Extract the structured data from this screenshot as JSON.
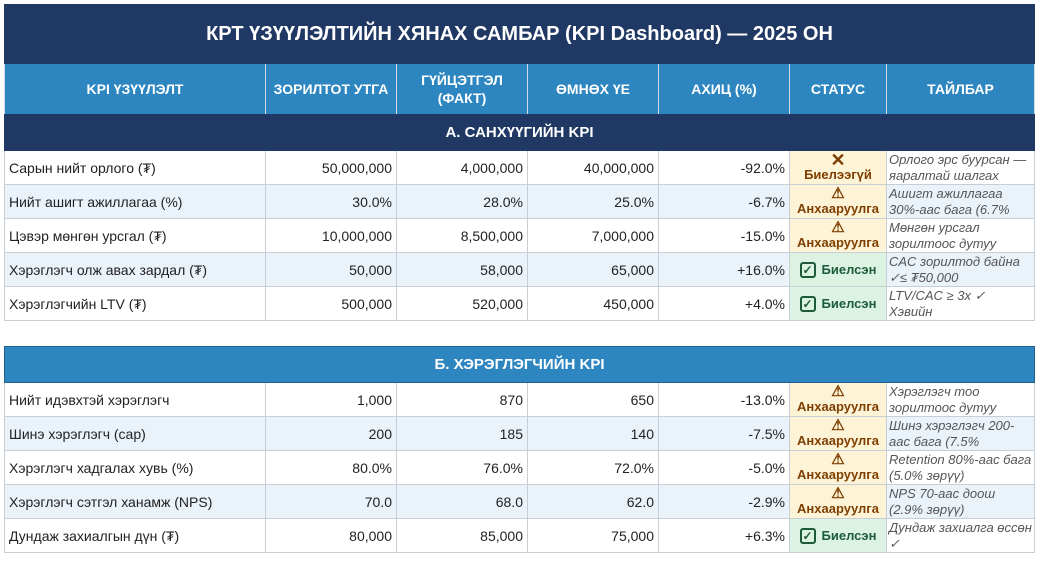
{
  "title": "КРТ ҮЗҮҮЛЭЛТИЙН ХЯНАХ САМБАР (KPI Dashboard) — 2025 ОН",
  "headers": {
    "kpi": "KPI ҮЗҮҮЛЭЛТ",
    "target": "ЗОРИЛТОТ УТГА",
    "fact_line1": "ГҮЙЦЭТГЭЛ",
    "fact_line2": "(ФАКТ)",
    "prev": "ӨМНӨХ ҮЕ",
    "change": "АХИЦ (%)",
    "status": "СТАТУС",
    "note": "ТАЙЛБАР"
  },
  "section_a": {
    "title": "А. САНХҮҮГИЙН KPI",
    "rows": [
      {
        "name": "Сарын нийт орлого (₮)",
        "target": "50,000,000",
        "fact": "4,000,000",
        "prev": "40,000,000",
        "change": "-92.0%",
        "status": "Биелээгүй",
        "status_type": "fail",
        "note": "Орлого эрс буурсан — яаралтай шалгах"
      },
      {
        "name": "Нийт ашигт ажиллагаа (%)",
        "target": "30.0%",
        "fact": "28.0%",
        "prev": "25.0%",
        "change": "-6.7%",
        "status": "Анхааруулга",
        "status_type": "warn",
        "note": "Ашигт ажиллагаа 30%-аас бага (6.7%"
      },
      {
        "name": "Цэвэр мөнгөн урсгал (₮)",
        "target": "10,000,000",
        "fact": "8,500,000",
        "prev": "7,000,000",
        "change": "-15.0%",
        "status": "Анхааруулга",
        "status_type": "warn",
        "note": "Мөнгөн урсгал зорилтоос дутуу"
      },
      {
        "name": "Хэрэглэгч олж авах зардал (₮)",
        "target": "50,000",
        "fact": "58,000",
        "prev": "65,000",
        "change": "+16.0%",
        "status": "Биелсэн",
        "status_type": "ok",
        "note": "CAC зорилтод байна ✓≤ ₮50,000"
      },
      {
        "name": "Хэрэглэгчийн LTV (₮)",
        "target": "500,000",
        "fact": "520,000",
        "prev": "450,000",
        "change": "+4.0%",
        "status": "Биелсэн",
        "status_type": "ok",
        "note": "LTV/CAC ≥ 3x ✓ Хэвийн"
      }
    ]
  },
  "section_b": {
    "title": "Б. ХЭРЭГЛЭГЧИЙН KPI",
    "rows": [
      {
        "name": "Нийт идэвхтэй хэрэглэгч",
        "target": "1,000",
        "fact": "870",
        "prev": "650",
        "change": "-13.0%",
        "status": "Анхааруулга",
        "status_type": "warn",
        "note": "Хэрэглэгч тоо зорилтоос дутуу"
      },
      {
        "name": "Шинэ хэрэглэгч (сар)",
        "target": "200",
        "fact": "185",
        "prev": "140",
        "change": "-7.5%",
        "status": "Анхааруулга",
        "status_type": "warn",
        "note": "Шинэ хэрэглэгч 200-аас бага (7.5%"
      },
      {
        "name": "Хэрэглэгч хадгалах хувь (%)",
        "target": "80.0%",
        "fact": "76.0%",
        "prev": "72.0%",
        "change": "-5.0%",
        "status": "Анхааруулга",
        "status_type": "warn",
        "note": "Retention 80%-аас бага (5.0% зөрүү)"
      },
      {
        "name": "Хэрэглэгч сэтгэл ханамж (NPS)",
        "target": "70.0",
        "fact": "68.0",
        "prev": "62.0",
        "change": "-2.9%",
        "status": "Анхааруулга",
        "status_type": "warn",
        "note": "NPS 70-аас доош (2.9% зөрүү)"
      },
      {
        "name": "Дундаж захиалгын дүн (₮)",
        "target": "80,000",
        "fact": "85,000",
        "prev": "75,000",
        "change": "+6.3%",
        "status": "Биелсэн",
        "status_type": "ok",
        "note": "Дундаж захиалга өссөн ✓"
      }
    ]
  }
}
